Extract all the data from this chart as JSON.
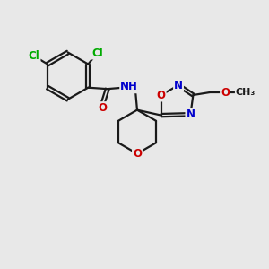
{
  "background_color": "#e8e8e8",
  "bond_color": "#1a1a1a",
  "bond_lw": 1.6,
  "atom_colors": {
    "C": "#1a1a1a",
    "N": "#0000cc",
    "O": "#cc0000",
    "Cl": "#00aa00",
    "H": "#888888"
  },
  "font_size": 8.5,
  "figsize": [
    3.0,
    3.0
  ],
  "dpi": 100
}
